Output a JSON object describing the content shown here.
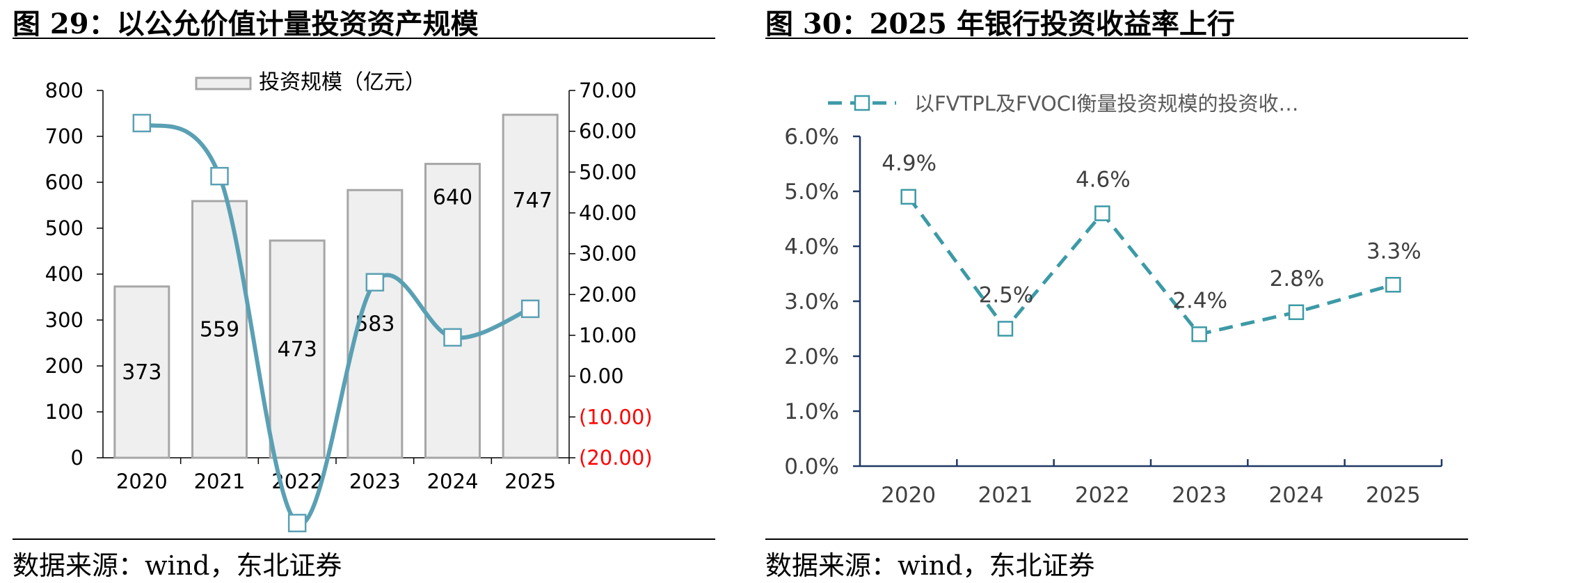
{
  "left": {
    "title": "图 29：以公允价值计量投资资产规模",
    "source": "数据来源：wind，东北证券",
    "chart_data": {
      "type": "bar",
      "categories": [
        "2020",
        "2021",
        "2022",
        "2023",
        "2024",
        "2025"
      ],
      "series": [
        {
          "name": "投资规模（亿元）",
          "type": "bar",
          "axis": "left",
          "values": [
            373,
            559,
            473,
            583,
            640,
            747
          ]
        },
        {
          "type": "line",
          "axis": "right",
          "values": [
            62.0,
            49.0,
            -36.0,
            23.0,
            9.5,
            16.5
          ]
        }
      ],
      "bar_labels": [
        "373",
        "559",
        "473",
        "583",
        "640",
        "747"
      ],
      "ylim": [
        0,
        800
      ],
      "yticks": [
        "0",
        "100",
        "200",
        "300",
        "400",
        "500",
        "600",
        "700",
        "800"
      ],
      "y2lim": [
        -20,
        70
      ],
      "y2ticks": [
        "(20.00)",
        "(10.00)",
        "0.00",
        "10.00",
        "20.00",
        "30.00",
        "40.00",
        "50.00",
        "60.00",
        "70.00"
      ],
      "legend_position": "top",
      "colors": {
        "bar_fill": "#efefef",
        "bar_stroke": "#a6a6a6",
        "line": "#5aa0b4",
        "negative_tick": "#ff0000"
      }
    }
  },
  "right": {
    "title": "图 30：2025 年银行投资收益率上行",
    "source": "数据来源：wind，东北证券",
    "chart_data": {
      "type": "line",
      "categories": [
        "2020",
        "2021",
        "2022",
        "2023",
        "2024",
        "2025"
      ],
      "series": [
        {
          "name": "以FVTPL及FVOCI衡量投资规模的投资收…",
          "values": [
            4.9,
            2.5,
            4.6,
            2.4,
            2.8,
            3.3
          ]
        }
      ],
      "point_labels": [
        "4.9%",
        "2.5%",
        "4.6%",
        "2.4%",
        "2.8%",
        "3.3%"
      ],
      "ylim": [
        0,
        6
      ],
      "yticks": [
        "0.0%",
        "1.0%",
        "2.0%",
        "3.0%",
        "4.0%",
        "5.0%",
        "6.0%"
      ],
      "legend_position": "top",
      "colors": {
        "line": "#3c9aa6",
        "axis": "#1f3864"
      }
    }
  }
}
